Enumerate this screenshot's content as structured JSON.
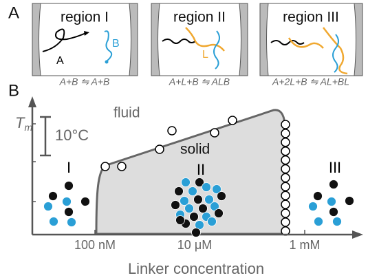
{
  "panel_a": {
    "label": "A",
    "regions": [
      {
        "title": "region I",
        "equation": "A+B ⇋ A+B",
        "strand_labels": [
          "A",
          "B"
        ]
      },
      {
        "title": "region II",
        "equation": "A+L+B ⇋ ALB",
        "strand_labels": [
          "L"
        ]
      },
      {
        "title": "region III",
        "equation": "A+2L+B ⇋ AL+BL"
      }
    ]
  },
  "panel_b": {
    "label": "B",
    "y_label": "T",
    "y_label_sub": "m",
    "scale_bar": "10°C",
    "x_label": "Linker concentration",
    "x_ticks": [
      "100 nM",
      "10 μM",
      "1 mM"
    ],
    "phase_labels": [
      "fluid",
      "solid"
    ],
    "region_labels": [
      "I",
      "II",
      "III"
    ]
  }
}
